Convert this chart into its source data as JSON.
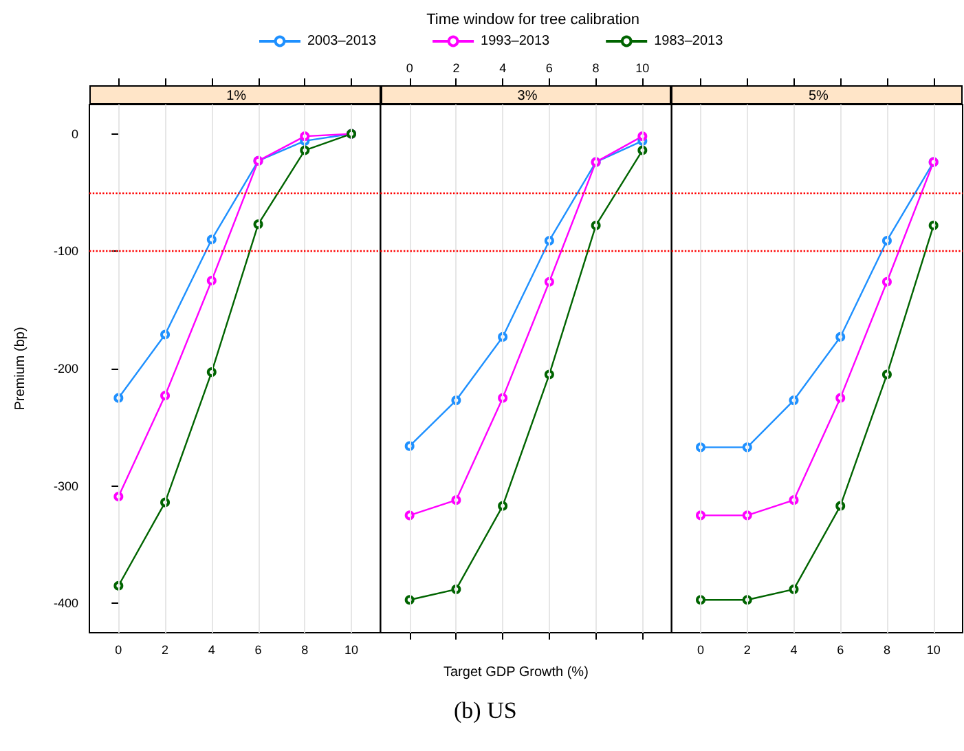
{
  "chart_data": [
    {
      "type": "line",
      "title": "1%",
      "ylabel": "Premium (bp)",
      "x": [
        0,
        2,
        4,
        6,
        8,
        10
      ],
      "xlim": [
        -1.25,
        11.25
      ],
      "xticks": [
        0,
        2,
        4,
        6,
        8,
        10
      ],
      "ylim": [
        -425,
        25
      ],
      "yticks": [
        -400,
        -300,
        -200,
        -100,
        0
      ],
      "grid": "x",
      "marker": "circle",
      "line_style": "solid",
      "ref_lines": [
        {
          "axis": "y",
          "value": -50,
          "color": "#ff0000",
          "line_style": "dotted"
        },
        {
          "axis": "y",
          "value": -100,
          "color": "#ff0000",
          "line_style": "dotted"
        }
      ],
      "series": [
        {
          "color": "#1e90ff",
          "values": [
            -225,
            -171,
            -90,
            -23,
            -6,
            0
          ]
        },
        {
          "color": "#ff00ff",
          "values": [
            -309,
            -223,
            -125,
            -23,
            -2,
            0
          ]
        },
        {
          "color": "#006400",
          "values": [
            -385,
            -314,
            -203,
            -77,
            -14,
            0
          ]
        }
      ]
    },
    {
      "type": "line",
      "title": "3%",
      "legend_title": "Time window for tree calibration",
      "legend": "top",
      "xlabel": "Target GDP Growth (%)",
      "annotations": [
        "(b) US"
      ],
      "tick_labels": "x",
      "x": [
        0,
        2,
        4,
        6,
        8,
        10
      ],
      "xlim": [
        -1.25,
        11.25
      ],
      "xticks": [
        0,
        2,
        4,
        6,
        8,
        10
      ],
      "ylim": [
        -425,
        25
      ],
      "grid": "x",
      "marker": "circle",
      "line_style": "solid",
      "ref_lines": [
        {
          "axis": "y",
          "value": -50,
          "color": "#ff0000",
          "line_style": "dotted"
        },
        {
          "axis": "y",
          "value": -100,
          "color": "#ff0000",
          "line_style": "dotted"
        }
      ],
      "series": [
        {
          "name": "2003–2013",
          "color": "#1e90ff",
          "values": [
            -266,
            -227,
            -173,
            -91,
            -24,
            -6
          ]
        },
        {
          "name": "1993–2013",
          "color": "#ff00ff",
          "values": [
            -325,
            -312,
            -225,
            -126,
            -24,
            -2
          ]
        },
        {
          "name": "1983–2013",
          "color": "#006400",
          "values": [
            -397,
            -388,
            -317,
            -205,
            -78,
            -14
          ]
        }
      ]
    },
    {
      "type": "line",
      "title": "5%",
      "tick_labels": "x",
      "x": [
        0,
        2,
        4,
        6,
        8,
        10
      ],
      "xlim": [
        -1.25,
        11.25
      ],
      "xticks": [
        0,
        2,
        4,
        6,
        8,
        10
      ],
      "ylim": [
        -425,
        25
      ],
      "grid": "x",
      "marker": "circle",
      "line_style": "solid",
      "ref_lines": [
        {
          "axis": "y",
          "value": -50,
          "color": "#ff0000",
          "line_style": "dotted"
        },
        {
          "axis": "y",
          "value": -100,
          "color": "#ff0000",
          "line_style": "dotted"
        }
      ],
      "series": [
        {
          "color": "#1e90ff",
          "values": [
            -267,
            -267,
            -227,
            -173,
            -91,
            -24
          ]
        },
        {
          "color": "#ff00ff",
          "values": [
            -325,
            -325,
            -312,
            -225,
            -126,
            -24
          ]
        },
        {
          "color": "#006400",
          "values": [
            -397,
            -397,
            -388,
            -317,
            -205,
            -78
          ]
        }
      ]
    }
  ]
}
